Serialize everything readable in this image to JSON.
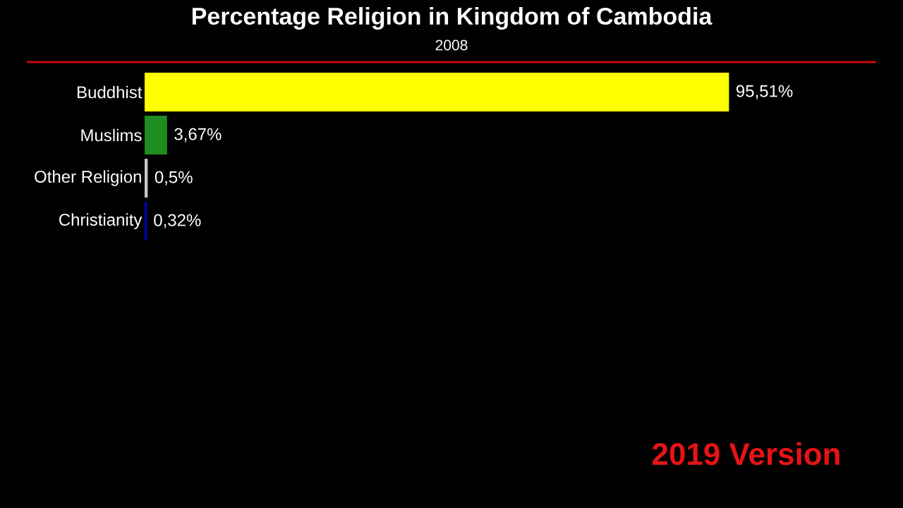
{
  "chart_data": {
    "type": "bar",
    "orientation": "horizontal",
    "title": "Percentage Religion in Kingdom of Cambodia",
    "subtitle": "2008",
    "categories": [
      "Buddhist",
      "Muslims",
      "Other Religion",
      "Christianity"
    ],
    "values": [
      95.51,
      3.67,
      0.5,
      0.32
    ],
    "colors": [
      "#ffff00",
      "#1e8c1e",
      "#c8c8c8",
      "#0000cc"
    ],
    "value_labels": [
      "95,51%",
      "3,67%",
      "0,5%",
      "0,32%"
    ],
    "annotations": [
      "2019 Version"
    ]
  }
}
